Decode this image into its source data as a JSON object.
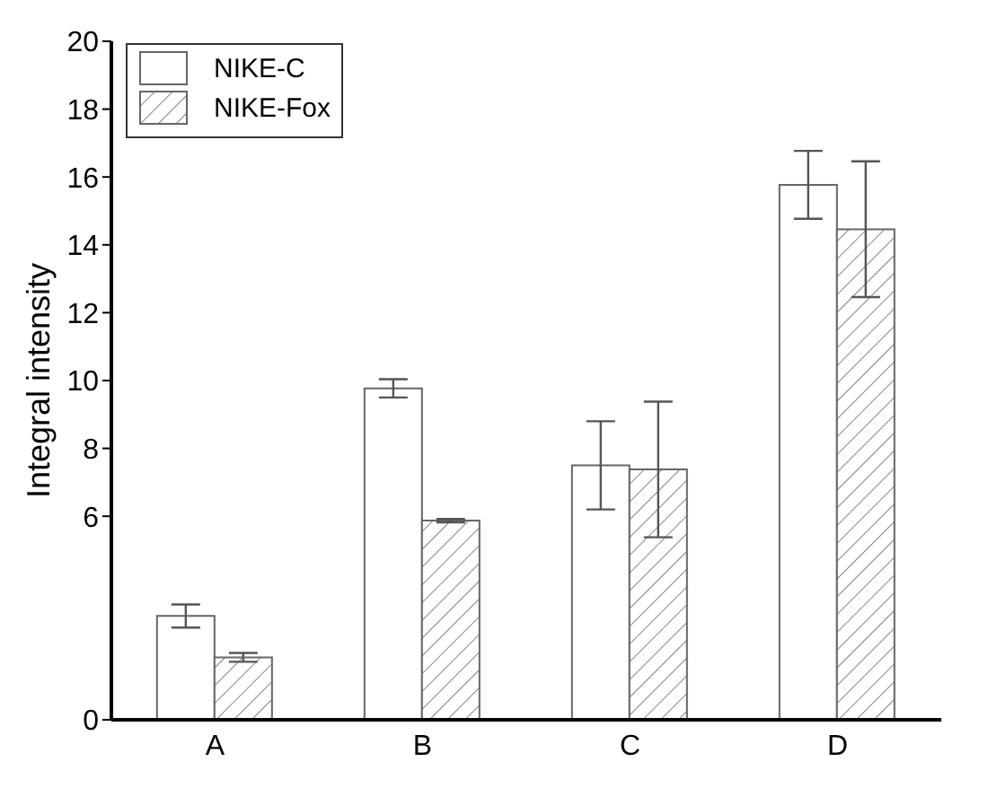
{
  "chart_data": {
    "type": "bar",
    "ylabel": "Integral intensity",
    "categories": [
      "A",
      "B",
      "C",
      "D"
    ],
    "series": [
      {
        "name": "NIKE-C",
        "color": "#ffffff",
        "values": [
          3.06,
          9.77,
          7.5,
          15.77
        ],
        "errors": [
          0.34,
          0.27,
          1.3,
          1.0
        ]
      },
      {
        "name": "NIKE-Fox",
        "color": "#666666",
        "values": [
          1.84,
          5.87,
          7.38,
          14.46
        ],
        "errors": [
          0.13,
          0.05,
          2.0,
          2.0
        ]
      }
    ],
    "ylim": [
      0,
      20
    ],
    "yticks": [
      0,
      6,
      8,
      10,
      12,
      14,
      16,
      18,
      20
    ],
    "legend": "top left"
  }
}
